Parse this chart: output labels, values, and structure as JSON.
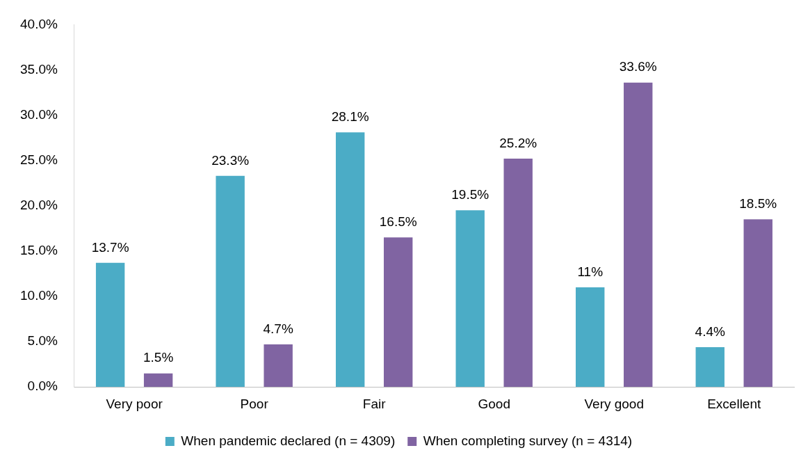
{
  "chart_data": {
    "type": "bar",
    "categories": [
      "Very poor",
      "Poor",
      "Fair",
      "Good",
      "Very good",
      "Excellent"
    ],
    "series": [
      {
        "name": "When pandemic declared (n = 4309)",
        "color": "#4bacc6",
        "values": [
          13.7,
          23.3,
          28.1,
          19.5,
          11,
          4.4
        ],
        "value_labels": [
          "13.7%",
          "23.3%",
          "28.1%",
          "19.5%",
          "11%",
          "4.4%"
        ]
      },
      {
        "name": "When completing survey (n = 4314)",
        "color": "#8064a2",
        "values": [
          1.5,
          4.7,
          16.5,
          25.2,
          33.6,
          18.5
        ],
        "value_labels": [
          "1.5%",
          "4.7%",
          "16.5%",
          "25.2%",
          "33.6%",
          "18.5%"
        ]
      }
    ],
    "ylim": [
      0,
      40
    ],
    "yticks": [
      {
        "value": 0,
        "label": "0.0%"
      },
      {
        "value": 5,
        "label": "5.0%"
      },
      {
        "value": 10,
        "label": "10.0%"
      },
      {
        "value": 15,
        "label": "15.0%"
      },
      {
        "value": 20,
        "label": "20.0%"
      },
      {
        "value": 25,
        "label": "25.0%"
      },
      {
        "value": 30,
        "label": "30.0%"
      },
      {
        "value": 35,
        "label": "35.0%"
      },
      {
        "value": 40,
        "label": "40.0%"
      }
    ],
    "grid": false,
    "legend": "bottom"
  }
}
